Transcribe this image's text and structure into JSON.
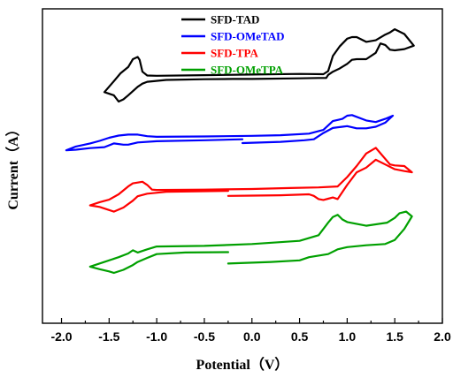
{
  "chart_data": {
    "type": "line",
    "xlabel": "Potential（V）",
    "ylabel": "Current（A）",
    "xlim": [
      -2.2,
      2.0
    ],
    "ylim": [
      0,
      1
    ],
    "x_ticks": [
      "-2.0",
      "-1.5",
      "-1.0",
      "-0.5",
      "0.0",
      "0.5",
      "1.0",
      "1.5",
      "2.0"
    ],
    "x_tick_values": [
      -2.0,
      -1.5,
      -1.0,
      -0.5,
      0.0,
      0.5,
      1.0,
      1.5,
      2.0
    ],
    "grid": false,
    "legend_position": "top-center",
    "series": [
      {
        "name": "SFD-TAD",
        "color": "#000000",
        "points": [
          [
            0.0,
            0.777
          ],
          [
            0.5,
            0.779
          ],
          [
            0.7,
            0.78
          ],
          [
            0.78,
            0.78
          ],
          [
            0.8,
            0.79
          ],
          [
            0.85,
            0.8
          ],
          [
            0.92,
            0.81
          ],
          [
            1.0,
            0.825
          ],
          [
            1.05,
            0.838
          ],
          [
            1.1,
            0.84
          ],
          [
            1.2,
            0.84
          ],
          [
            1.3,
            0.86
          ],
          [
            1.35,
            0.89
          ],
          [
            1.4,
            0.885
          ],
          [
            1.45,
            0.87
          ],
          [
            1.5,
            0.868
          ],
          [
            1.6,
            0.872
          ],
          [
            1.7,
            0.883
          ],
          [
            1.6,
            0.92
          ],
          [
            1.5,
            0.935
          ],
          [
            1.45,
            0.925
          ],
          [
            1.4,
            0.918
          ],
          [
            1.3,
            0.9
          ],
          [
            1.2,
            0.895
          ],
          [
            1.1,
            0.91
          ],
          [
            1.05,
            0.91
          ],
          [
            1.0,
            0.905
          ],
          [
            0.92,
            0.88
          ],
          [
            0.85,
            0.85
          ],
          [
            0.8,
            0.802
          ],
          [
            0.75,
            0.792
          ],
          [
            0.5,
            0.793
          ],
          [
            0.0,
            0.791
          ],
          [
            -0.5,
            0.789
          ],
          [
            -1.0,
            0.787
          ],
          [
            -1.1,
            0.788
          ],
          [
            -1.15,
            0.8
          ],
          [
            -1.18,
            0.838
          ],
          [
            -1.2,
            0.847
          ],
          [
            -1.25,
            0.84
          ],
          [
            -1.3,
            0.815
          ],
          [
            -1.38,
            0.795
          ],
          [
            -1.45,
            0.77
          ],
          [
            -1.55,
            0.735
          ],
          [
            -1.45,
            0.725
          ],
          [
            -1.4,
            0.705
          ],
          [
            -1.35,
            0.712
          ],
          [
            -1.3,
            0.725
          ],
          [
            -1.2,
            0.752
          ],
          [
            -1.15,
            0.762
          ],
          [
            -1.1,
            0.768
          ],
          [
            -0.9,
            0.774
          ],
          [
            -0.5,
            0.776
          ],
          [
            -0.2,
            0.777
          ],
          [
            0.0,
            0.777
          ]
        ]
      },
      {
        "name": "SFD-OMeTAD",
        "color": "#0000ff",
        "points": [
          [
            -0.1,
            0.573
          ],
          [
            0.3,
            0.577
          ],
          [
            0.55,
            0.582
          ],
          [
            0.65,
            0.585
          ],
          [
            0.75,
            0.605
          ],
          [
            0.85,
            0.621
          ],
          [
            0.95,
            0.625
          ],
          [
            1.0,
            0.627
          ],
          [
            1.1,
            0.62
          ],
          [
            1.2,
            0.62
          ],
          [
            1.3,
            0.625
          ],
          [
            1.4,
            0.638
          ],
          [
            1.48,
            0.66
          ],
          [
            1.4,
            0.65
          ],
          [
            1.3,
            0.64
          ],
          [
            1.2,
            0.645
          ],
          [
            1.05,
            0.662
          ],
          [
            1.0,
            0.66
          ],
          [
            0.95,
            0.65
          ],
          [
            0.85,
            0.643
          ],
          [
            0.75,
            0.615
          ],
          [
            0.6,
            0.603
          ],
          [
            0.3,
            0.598
          ],
          [
            0.0,
            0.596
          ],
          [
            -0.5,
            0.594
          ],
          [
            -1.0,
            0.593
          ],
          [
            -1.1,
            0.595
          ],
          [
            -1.2,
            0.6
          ],
          [
            -1.3,
            0.6
          ],
          [
            -1.4,
            0.597
          ],
          [
            -1.5,
            0.59
          ],
          [
            -1.6,
            0.58
          ],
          [
            -1.7,
            0.572
          ],
          [
            -1.85,
            0.562
          ],
          [
            -1.95,
            0.55
          ],
          [
            -1.85,
            0.552
          ],
          [
            -1.7,
            0.557
          ],
          [
            -1.55,
            0.56
          ],
          [
            -1.45,
            0.572
          ],
          [
            -1.35,
            0.568
          ],
          [
            -1.3,
            0.568
          ],
          [
            -1.2,
            0.575
          ],
          [
            -1.0,
            0.579
          ],
          [
            -0.5,
            0.582
          ],
          [
            -0.1,
            0.585
          ]
        ]
      },
      {
        "name": "SFD-TPA",
        "color": "#ff0000",
        "points": [
          [
            -0.25,
            0.405
          ],
          [
            0.0,
            0.406
          ],
          [
            0.3,
            0.407
          ],
          [
            0.6,
            0.41
          ],
          [
            0.65,
            0.405
          ],
          [
            0.7,
            0.395
          ],
          [
            0.75,
            0.392
          ],
          [
            0.8,
            0.396
          ],
          [
            0.85,
            0.4
          ],
          [
            0.9,
            0.395
          ],
          [
            1.0,
            0.44
          ],
          [
            1.1,
            0.48
          ],
          [
            1.2,
            0.495
          ],
          [
            1.3,
            0.52
          ],
          [
            1.4,
            0.505
          ],
          [
            1.5,
            0.49
          ],
          [
            1.6,
            0.484
          ],
          [
            1.68,
            0.48
          ],
          [
            1.6,
            0.5
          ],
          [
            1.5,
            0.502
          ],
          [
            1.45,
            0.505
          ],
          [
            1.3,
            0.558
          ],
          [
            1.2,
            0.54
          ],
          [
            1.1,
            0.5
          ],
          [
            1.0,
            0.465
          ],
          [
            0.9,
            0.435
          ],
          [
            0.7,
            0.432
          ],
          [
            0.4,
            0.43
          ],
          [
            0.0,
            0.427
          ],
          [
            -0.5,
            0.425
          ],
          [
            -1.0,
            0.424
          ],
          [
            -1.05,
            0.425
          ],
          [
            -1.1,
            0.44
          ],
          [
            -1.15,
            0.45
          ],
          [
            -1.25,
            0.445
          ],
          [
            -1.3,
            0.435
          ],
          [
            -1.4,
            0.41
          ],
          [
            -1.5,
            0.393
          ],
          [
            -1.6,
            0.385
          ],
          [
            -1.7,
            0.375
          ],
          [
            -1.6,
            0.37
          ],
          [
            -1.5,
            0.36
          ],
          [
            -1.45,
            0.355
          ],
          [
            -1.35,
            0.368
          ],
          [
            -1.25,
            0.39
          ],
          [
            -1.2,
            0.404
          ],
          [
            -1.1,
            0.412
          ],
          [
            -0.9,
            0.418
          ],
          [
            -0.5,
            0.42
          ],
          [
            -0.25,
            0.421
          ]
        ]
      },
      {
        "name": "SFD-OMeTPA",
        "color": "#00a000",
        "points": [
          [
            -0.25,
            0.19
          ],
          [
            0.2,
            0.195
          ],
          [
            0.5,
            0.2
          ],
          [
            0.6,
            0.21
          ],
          [
            0.8,
            0.22
          ],
          [
            0.9,
            0.235
          ],
          [
            1.0,
            0.242
          ],
          [
            1.2,
            0.248
          ],
          [
            1.4,
            0.252
          ],
          [
            1.5,
            0.265
          ],
          [
            1.6,
            0.3
          ],
          [
            1.68,
            0.34
          ],
          [
            1.62,
            0.355
          ],
          [
            1.55,
            0.35
          ],
          [
            1.5,
            0.335
          ],
          [
            1.42,
            0.32
          ],
          [
            1.2,
            0.31
          ],
          [
            1.0,
            0.322
          ],
          [
            0.95,
            0.33
          ],
          [
            0.9,
            0.345
          ],
          [
            0.85,
            0.338
          ],
          [
            0.8,
            0.32
          ],
          [
            0.7,
            0.28
          ],
          [
            0.5,
            0.262
          ],
          [
            0.0,
            0.252
          ],
          [
            -0.5,
            0.246
          ],
          [
            -1.0,
            0.244
          ],
          [
            -1.1,
            0.235
          ],
          [
            -1.2,
            0.225
          ],
          [
            -1.25,
            0.232
          ],
          [
            -1.3,
            0.222
          ],
          [
            -1.4,
            0.21
          ],
          [
            -1.55,
            0.195
          ],
          [
            -1.7,
            0.18
          ],
          [
            -1.6,
            0.172
          ],
          [
            -1.5,
            0.165
          ],
          [
            -1.45,
            0.16
          ],
          [
            -1.35,
            0.17
          ],
          [
            -1.25,
            0.185
          ],
          [
            -1.2,
            0.195
          ],
          [
            -1.1,
            0.208
          ],
          [
            -1.0,
            0.22
          ],
          [
            -0.7,
            0.225
          ],
          [
            -0.25,
            0.226
          ]
        ]
      }
    ]
  }
}
